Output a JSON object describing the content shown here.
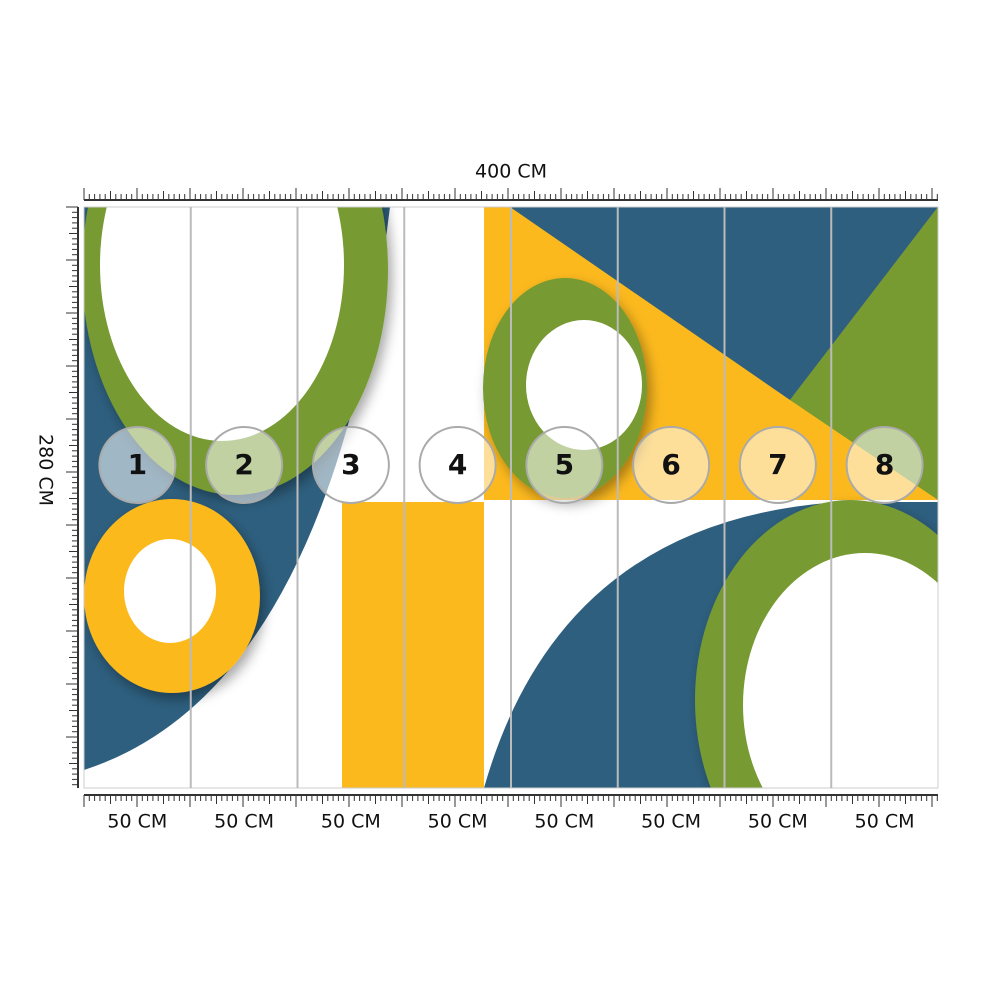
{
  "width_label": "400 CM",
  "height_label": "280 CM",
  "panels": [
    {
      "number": "1",
      "width": "50 CM"
    },
    {
      "number": "2",
      "width": "50 CM"
    },
    {
      "number": "3",
      "width": "50 CM"
    },
    {
      "number": "4",
      "width": "50 CM"
    },
    {
      "number": "5",
      "width": "50 CM"
    },
    {
      "number": "6",
      "width": "50 CM"
    },
    {
      "number": "7",
      "width": "50 CM"
    },
    {
      "number": "8",
      "width": "50 CM"
    }
  ]
}
